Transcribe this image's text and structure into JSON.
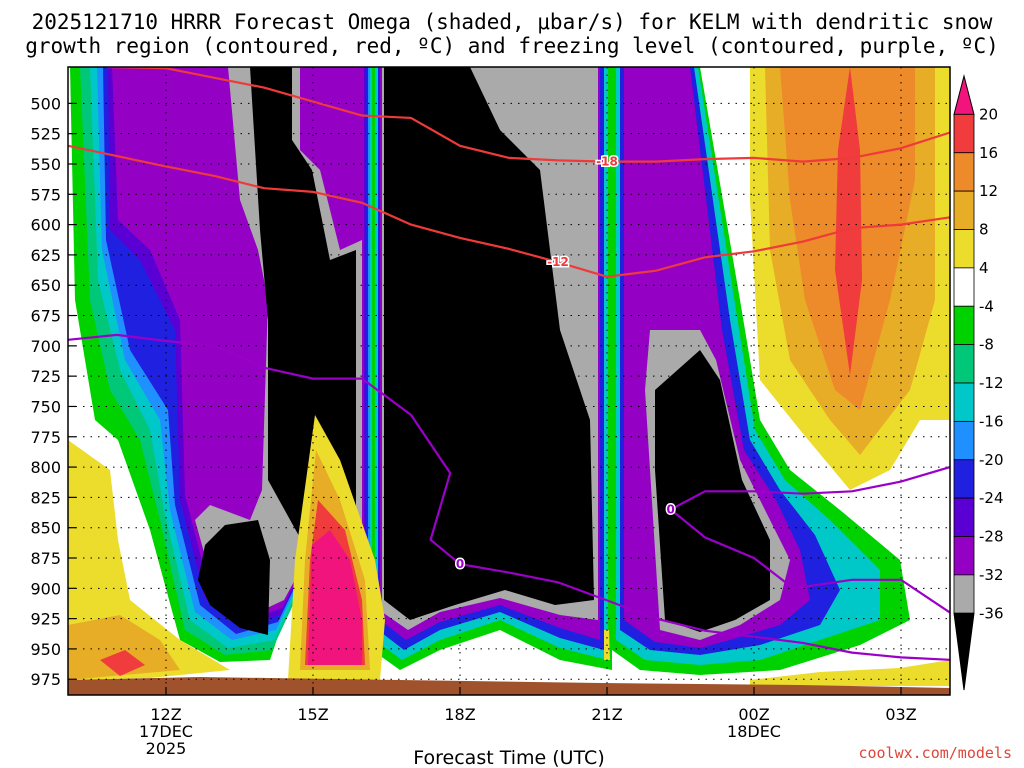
{
  "title_line1": "2025121710 HRRR Forecast Omega (shaded, μbar/s) for KELM with dendritic snow",
  "title_line2": "growth region (contoured, red, ºC) and freezing level (contoured, purple, ºC)",
  "credit": "coolwx.com/models",
  "chart_data": {
    "type": "heatmap",
    "xlabel": "Forecast Time (UTC)",
    "ylabel": "",
    "x_ticks": [
      {
        "label": "12Z",
        "sub1": "17DEC",
        "sub2": "2025",
        "hour": 12
      },
      {
        "label": "15Z",
        "sub1": "",
        "sub2": "",
        "hour": 15
      },
      {
        "label": "18Z",
        "sub1": "",
        "sub2": "",
        "hour": 18
      },
      {
        "label": "21Z",
        "sub1": "",
        "sub2": "",
        "hour": 21
      },
      {
        "label": "00Z",
        "sub1": "18DEC",
        "sub2": "",
        "hour": 24
      },
      {
        "label": "03Z",
        "sub1": "",
        "sub2": "",
        "hour": 27
      }
    ],
    "xlim": [
      10,
      28
    ],
    "y_ticks": [
      500,
      525,
      550,
      575,
      600,
      625,
      650,
      675,
      700,
      725,
      750,
      775,
      800,
      825,
      850,
      875,
      900,
      925,
      950,
      975
    ],
    "ylim": [
      470,
      988
    ],
    "y_inverted": true,
    "grid": true,
    "colorbar": {
      "levels": [
        "-36",
        "-32",
        "-28",
        "-24",
        "-20",
        "-16",
        "-12",
        "-8",
        "-4",
        "4",
        "8",
        "12",
        "16",
        "20"
      ],
      "colors": [
        "#000000",
        "#aaaaaa",
        "#9500c5",
        "#5a00d5",
        "#2020e0",
        "#1e90ff",
        "#00c8c8",
        "#00c878",
        "#00d200",
        "#ffffff",
        "#ecdc2c",
        "#e8ad26",
        "#ed8a2a",
        "#f03c3c",
        "#f0147c"
      ]
    },
    "omega_features": [
      {
        "name": "strong ascent column 1",
        "min_value": -36,
        "hour_range": [
          13,
          14
        ],
        "pressure_range": [
          825,
          945
        ]
      },
      {
        "name": "strong ascent column 2",
        "min_value": -36,
        "hour_range": [
          16.2,
          20.5
        ],
        "pressure_range": [
          470,
          930
        ]
      },
      {
        "name": "strong ascent column 3",
        "min_value": -36,
        "hour_range": [
          22.5,
          24.1
        ],
        "pressure_range": [
          680,
          940
        ]
      },
      {
        "name": "descent near 15Z",
        "max_value": 20,
        "hour_range": [
          14.6,
          16.2
        ],
        "pressure_range": [
          730,
          980
        ]
      },
      {
        "name": "descent near 02Z",
        "max_value": 16,
        "hour_range": [
          24,
          27
        ],
        "pressure_range": [
          470,
          790
        ]
      }
    ],
    "contours": [
      {
        "field": "temperature",
        "value": -18,
        "color": "#ee3a3a",
        "label": "-18",
        "points": [
          [
            10.8,
            470
          ],
          [
            12,
            471
          ],
          [
            14,
            487
          ],
          [
            16,
            510
          ],
          [
            17,
            512
          ],
          [
            18,
            535
          ],
          [
            19,
            545
          ],
          [
            20,
            547
          ],
          [
            21,
            548
          ],
          [
            22,
            548
          ],
          [
            23,
            546
          ],
          [
            24,
            545
          ],
          [
            25,
            548
          ],
          [
            26,
            545
          ],
          [
            27,
            537
          ],
          [
            28,
            524
          ]
        ]
      },
      {
        "name": "dendritic lower bound",
        "field": "temperature",
        "value": -12,
        "color": "#ee3a3a",
        "label": "-12",
        "points": [
          [
            10,
            535
          ],
          [
            12,
            552
          ],
          [
            13,
            560
          ],
          [
            14,
            570
          ],
          [
            15,
            573
          ],
          [
            16,
            582
          ],
          [
            17,
            600
          ],
          [
            18,
            611
          ],
          [
            19,
            620
          ],
          [
            20,
            631
          ],
          [
            21,
            643
          ],
          [
            22,
            638
          ],
          [
            23,
            627
          ],
          [
            24,
            622
          ],
          [
            25,
            614
          ],
          [
            26,
            603
          ],
          [
            27,
            600
          ],
          [
            28,
            594
          ]
        ]
      },
      {
        "field": "temperature",
        "value": 0,
        "color": "#9a00c8",
        "label": "0",
        "points": [
          [
            10,
            695
          ],
          [
            11,
            691
          ],
          [
            12,
            696
          ],
          [
            13,
            700
          ],
          [
            14,
            718
          ],
          [
            15,
            727
          ],
          [
            16,
            727
          ],
          [
            17,
            757
          ],
          [
            17.8,
            805
          ],
          [
            17.4,
            860
          ],
          [
            18,
            880
          ],
          [
            19,
            887
          ],
          [
            20,
            895
          ],
          [
            21,
            910
          ],
          [
            22,
            925
          ],
          [
            23,
            935
          ],
          [
            24,
            940
          ],
          [
            25,
            945
          ],
          [
            26,
            953
          ],
          [
            27,
            957
          ],
          [
            28,
            959
          ]
        ]
      },
      {
        "field": "temperature",
        "value": 0,
        "color": "#9a00c8",
        "label": "0",
        "points": [
          [
            28,
            800
          ],
          [
            27,
            812
          ],
          [
            26,
            820
          ],
          [
            25,
            822
          ],
          [
            24,
            820
          ],
          [
            23,
            820
          ],
          [
            22.3,
            835
          ],
          [
            23,
            858
          ],
          [
            24,
            875
          ],
          [
            24.8,
            900
          ],
          [
            26,
            893
          ],
          [
            27,
            893
          ],
          [
            28,
            920
          ]
        ]
      }
    ]
  }
}
